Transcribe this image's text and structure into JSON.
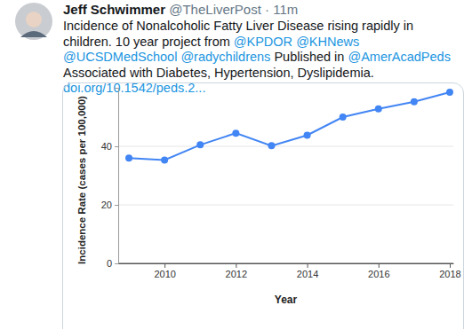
{
  "tweet": {
    "author": "Jeff Schwimmer",
    "handle": "@TheLiverPost",
    "time": "· 11m",
    "text": [
      {
        "text": "Incidence of Nonalcoholic Fatty Liver Disease rising rapidly in children. 10 year project from",
        "link": false
      },
      {
        "text": "@KPDOR",
        "link": true
      },
      {
        "text": "@KHNews",
        "link": true
      },
      {
        "text": "@UCSDMedSchool",
        "link": true
      },
      {
        "text": "@radychildrens",
        "link": true
      },
      {
        "text": "Published in",
        "link": false
      },
      {
        "text": "@AmerAcadPeds",
        "link": true
      },
      {
        "text": "Associated with Diabetes, Hypertension, Dyslipidemia.",
        "link": false
      },
      {
        "text": "doi.org/10.1542/peds.2...",
        "link": true
      }
    ]
  },
  "chart_data": {
    "type": "line",
    "x": [
      2009,
      2010,
      2011,
      2012,
      2013,
      2014,
      2015,
      2016,
      2017,
      2018
    ],
    "values": [
      36,
      35.3,
      40.5,
      44.5,
      40.2,
      43.8,
      50,
      52.8,
      55.2,
      58.5
    ],
    "color": "#4285f4",
    "marker": "circle",
    "line_style": "solid",
    "x_label": "Year",
    "y_label": "Incidence Rate (cases per 100,000)",
    "xlim": [
      2008.7,
      2018.1
    ],
    "xticks": [
      2010,
      2012,
      2014,
      2016,
      2018
    ],
    "ylim": [
      0,
      60
    ],
    "yticks": [
      0,
      20,
      40
    ],
    "grid": true
  }
}
